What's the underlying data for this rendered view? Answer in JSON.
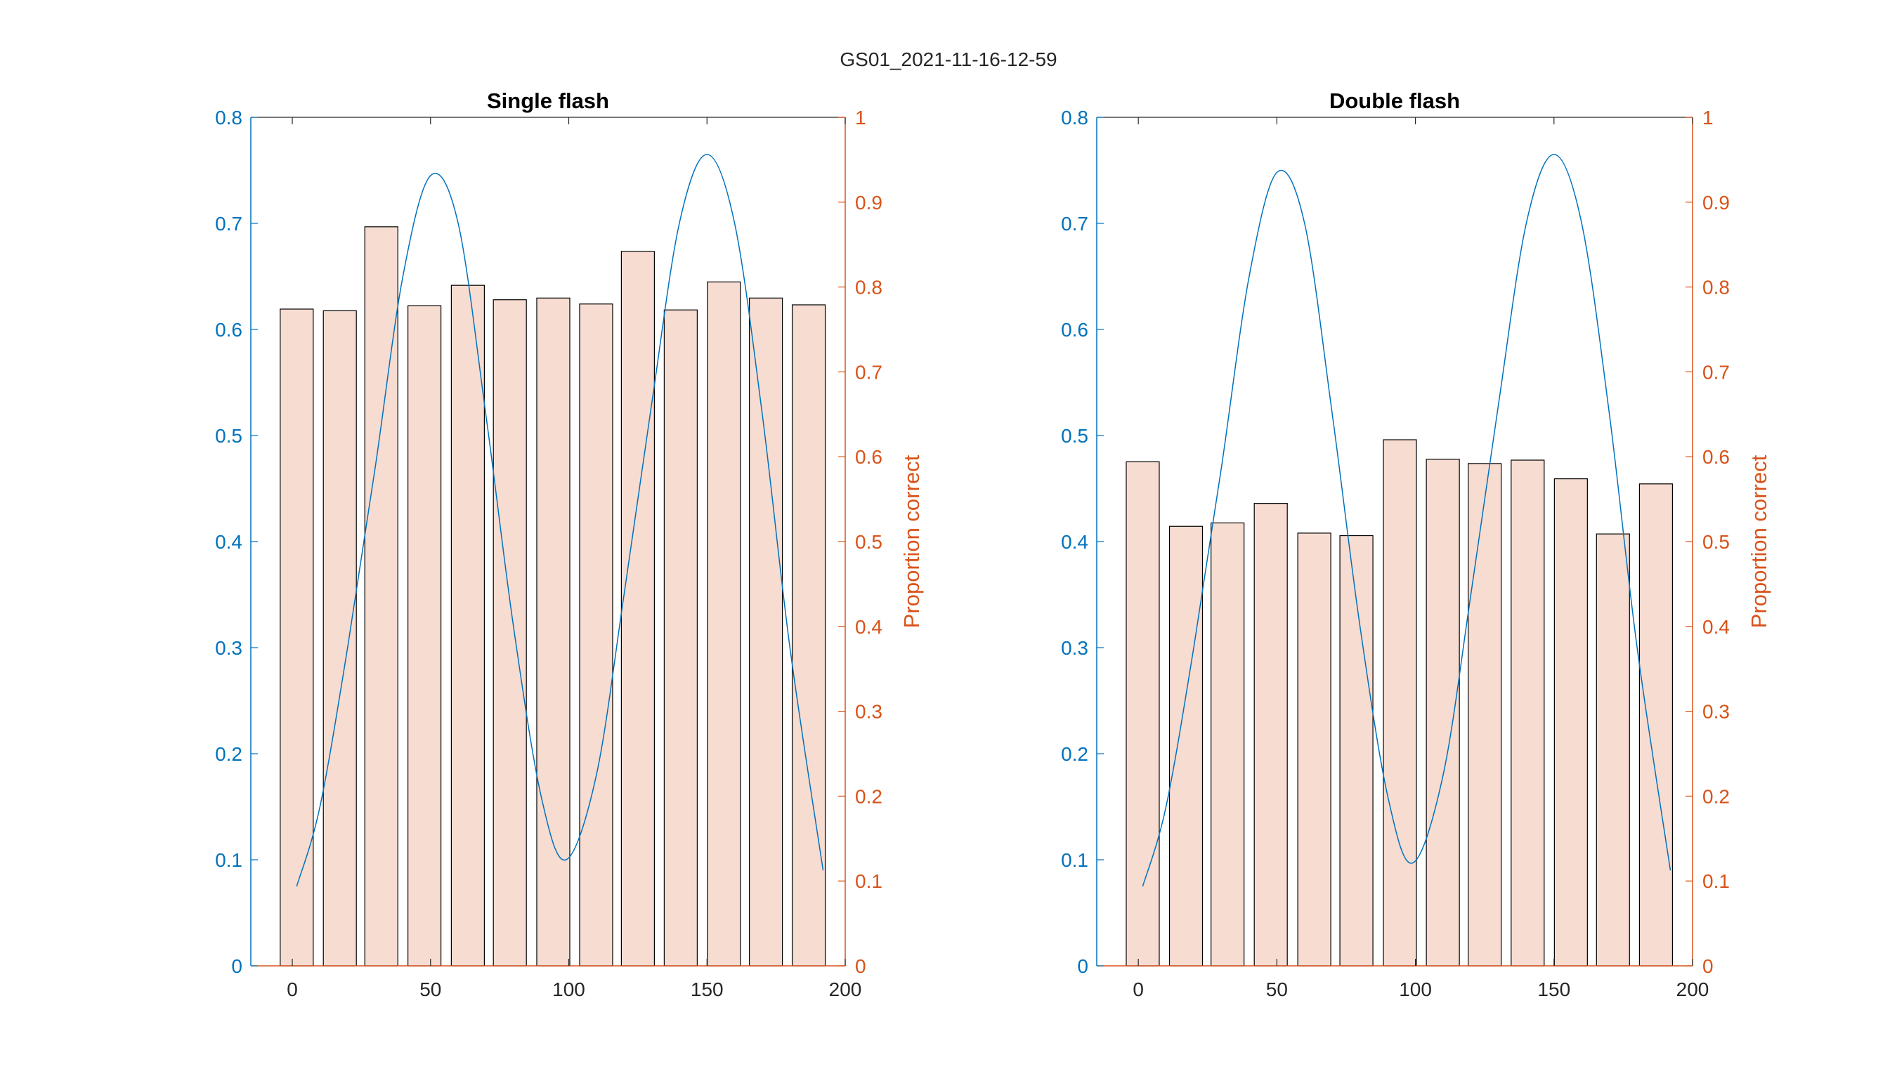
{
  "figure": {
    "suptitle": "GS01_2021-11-16-12-59"
  },
  "colors": {
    "left_axis": "#0072BD",
    "right_axis": "#D95319",
    "bar_fill": "#F6DCD1",
    "bar_edge": "#000000",
    "curve": "#0072BD"
  },
  "chart_data": [
    {
      "type": "bar",
      "title": "Single flash",
      "xlabel": "",
      "xlim": [
        -15,
        200
      ],
      "xticks": [
        0,
        50,
        100,
        150,
        200
      ],
      "ylim_left": [
        0,
        0.8
      ],
      "yticks_left": [
        0,
        0.1,
        0.2,
        0.3,
        0.4,
        0.5,
        0.6,
        0.7,
        0.8
      ],
      "ylabel_left": "",
      "ylim_right": [
        0,
        1
      ],
      "yticks_right": [
        0,
        0.1,
        0.2,
        0.3,
        0.4,
        0.5,
        0.6,
        0.7,
        0.8,
        0.9,
        1
      ],
      "ylabel_right": "Proportion correct",
      "bar_axis": "right",
      "x": [
        1.6,
        17.2,
        32.2,
        47.8,
        63.5,
        78.7,
        94.4,
        109.9,
        125.0,
        140.5,
        156.1,
        171.3,
        186.8
      ],
      "values": [
        0.774,
        0.772,
        0.871,
        0.778,
        0.802,
        0.785,
        0.787,
        0.78,
        0.842,
        0.773,
        0.806,
        0.787,
        0.779
      ],
      "curve": {
        "axis": "left",
        "x": [
          1.6,
          10,
          20,
          30,
          40,
          50,
          60,
          70,
          80,
          90,
          99,
          110,
          120,
          130,
          140,
          150,
          160,
          170,
          180,
          192
        ],
        "y": [
          0.075,
          0.15,
          0.3,
          0.47,
          0.65,
          0.745,
          0.7,
          0.52,
          0.32,
          0.16,
          0.1,
          0.18,
          0.35,
          0.53,
          0.7,
          0.765,
          0.7,
          0.52,
          0.3,
          0.09
        ]
      }
    },
    {
      "type": "bar",
      "title": "Double flash",
      "xlabel": "",
      "xlim": [
        -15,
        200
      ],
      "xticks": [
        0,
        50,
        100,
        150,
        200
      ],
      "ylim_left": [
        0,
        0.8
      ],
      "yticks_left": [
        0,
        0.1,
        0.2,
        0.3,
        0.4,
        0.5,
        0.6,
        0.7,
        0.8
      ],
      "ylabel_left": "",
      "ylim_right": [
        0,
        1
      ],
      "yticks_right": [
        0,
        0.1,
        0.2,
        0.3,
        0.4,
        0.5,
        0.6,
        0.7,
        0.8,
        0.9,
        1
      ],
      "ylabel_right": "Proportion correct",
      "bar_axis": "right",
      "x": [
        1.6,
        17.2,
        32.2,
        47.8,
        63.5,
        78.7,
        94.4,
        109.9,
        125.0,
        140.5,
        156.1,
        171.3,
        186.8
      ],
      "values": [
        0.594,
        0.518,
        0.522,
        0.545,
        0.51,
        0.507,
        0.62,
        0.597,
        0.592,
        0.596,
        0.574,
        0.509,
        0.568
      ],
      "curve": {
        "axis": "left",
        "x": [
          1.6,
          10,
          20,
          30,
          40,
          50,
          60,
          70,
          80,
          90,
          99,
          110,
          120,
          130,
          140,
          150,
          160,
          170,
          180,
          192
        ],
        "y": [
          0.075,
          0.15,
          0.3,
          0.47,
          0.65,
          0.748,
          0.7,
          0.52,
          0.32,
          0.16,
          0.097,
          0.18,
          0.35,
          0.53,
          0.7,
          0.765,
          0.7,
          0.52,
          0.3,
          0.09
        ]
      }
    }
  ]
}
